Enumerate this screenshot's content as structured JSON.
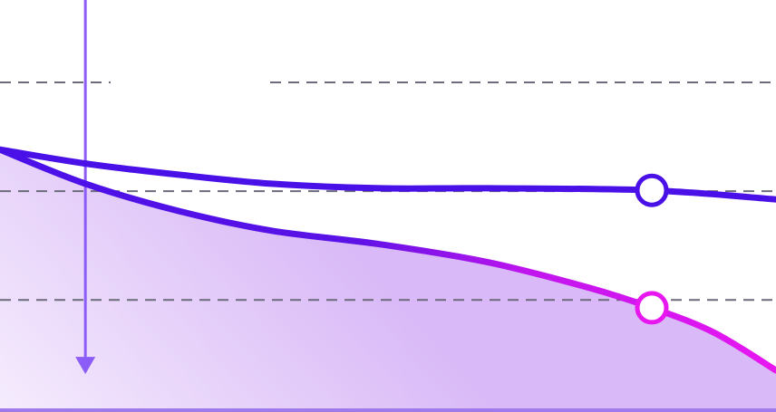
{
  "chart_data": {
    "type": "line",
    "title": "",
    "xlabel": "",
    "ylabel": "",
    "xlim": [
      0,
      100
    ],
    "ylim": [
      0,
      100
    ],
    "grid": "horizontal-dashed",
    "gridlines_y": [
      80,
      53.6,
      27.2
    ],
    "series": [
      {
        "name": "",
        "color": "#4a10e8",
        "fill": false,
        "points": [
          [
            0,
            63.7
          ],
          [
            11,
            60.3
          ],
          [
            23,
            57.6
          ],
          [
            35,
            55.4
          ],
          [
            49,
            54.3
          ],
          [
            63,
            54.3
          ],
          [
            84,
            53.8
          ],
          [
            100,
            51.6
          ]
        ]
      },
      {
        "name": "",
        "color": "#4a10e8",
        "color_end": "#e817f0",
        "fill": true,
        "fill_color": "#d9b9f7",
        "points": [
          [
            0,
            63.7
          ],
          [
            11,
            55.4
          ],
          [
            23,
            48.8
          ],
          [
            35,
            44.0
          ],
          [
            49,
            40.7
          ],
          [
            63,
            36.3
          ],
          [
            76,
            30.1
          ],
          [
            84,
            25.3
          ],
          [
            92,
            19.3
          ],
          [
            100,
            10.1
          ]
        ]
      }
    ],
    "markers": [
      {
        "series": 0,
        "x": 84,
        "y": 53.8
      },
      {
        "series": 1,
        "x": 84,
        "y": 25.3
      }
    ],
    "arrow": {
      "x": 11,
      "from_y": 100,
      "to_y": 9.2,
      "color": "#8b5cf6"
    }
  }
}
